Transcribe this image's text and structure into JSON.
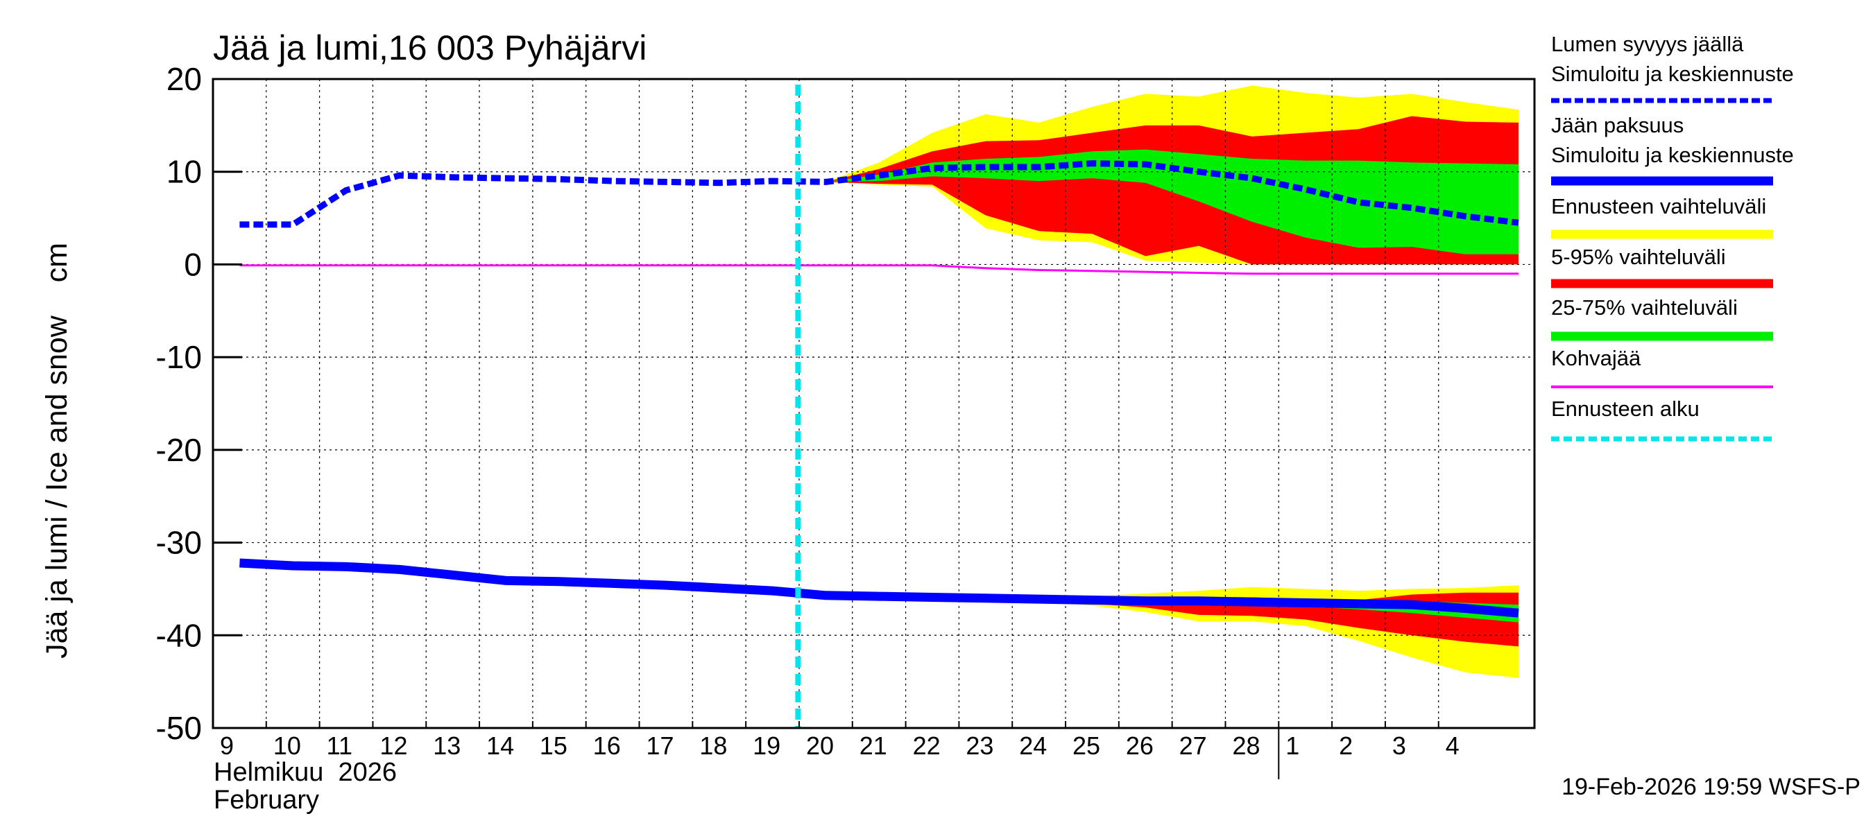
{
  "chart_data": {
    "type": "area",
    "title": "Jää ja lumi,16 003 Pyhäjärvi",
    "ylabel": "Jää ja lumi / Ice and snow    cm",
    "ylim": [
      -50,
      20
    ],
    "yticks": [
      20,
      10,
      0,
      -10,
      -20,
      -30,
      -40,
      -50
    ],
    "grid": true,
    "legend_position": "right",
    "x_axis": {
      "month_label_fi": "Helmikuu  2026",
      "month_label_en": "February",
      "day_labels": [
        "9",
        "10",
        "11",
        "12",
        "13",
        "14",
        "15",
        "16",
        "17",
        "18",
        "19",
        "20",
        "21",
        "22",
        "23",
        "24",
        "25",
        "26",
        "27",
        "28",
        "1",
        "2",
        "3",
        "4"
      ]
    },
    "x": [
      9,
      10,
      11,
      12,
      13,
      14,
      15,
      16,
      17,
      18,
      19,
      20,
      21,
      22,
      23,
      24,
      25,
      26,
      27,
      28,
      29,
      30,
      31,
      32,
      33
    ],
    "forecast_start": 19.5,
    "footer": "19-Feb-2026 19:59 WSFS-P",
    "legend": [
      {
        "label": "Lumen syvyys jäällä",
        "key": "snow_header"
      },
      {
        "label": "Simuloitu ja keskiennuste",
        "key": "snow_mean",
        "color": "#0000ff",
        "style": "dashed"
      },
      {
        "label": "Jään paksuus",
        "key": "ice_header"
      },
      {
        "label": "Simuloitu ja keskiennuste",
        "key": "ice_mean",
        "color": "#0000ff",
        "style": "solid"
      },
      {
        "label": "Ennusteen vaihteluväli",
        "key": "range_full",
        "color": "#ffff00",
        "style": "solid"
      },
      {
        "label": "5-95% vaihteluväli",
        "key": "range_5_95",
        "color": "#ff0000",
        "style": "solid"
      },
      {
        "label": "25-75% vaihteluväli",
        "key": "range_25_75",
        "color": "#00ee00",
        "style": "solid"
      },
      {
        "label": "Kohvajää",
        "key": "slush",
        "color": "#ff00ff",
        "style": "thin"
      },
      {
        "label": "Ennusteen alku",
        "key": "forecast_start",
        "color": "#00e5ee",
        "style": "dashed"
      }
    ],
    "series": [
      {
        "name": "Lumen syvyys jäällä: Simuloitu ja keskiennuste",
        "x": [
          9,
          10,
          11,
          12,
          13,
          14,
          15,
          16,
          17,
          18,
          19,
          20,
          21,
          22,
          23,
          24,
          25,
          26,
          27,
          28,
          29,
          30,
          31,
          32,
          33
        ],
        "values": [
          4.3,
          4.3,
          8.0,
          9.6,
          9.4,
          9.3,
          9.2,
          9.0,
          8.9,
          8.8,
          9.0,
          8.9,
          9.6,
          10.4,
          10.5,
          10.5,
          10.9,
          10.8,
          10.0,
          9.3,
          8.1,
          6.7,
          6.1,
          5.2,
          4.5
        ]
      },
      {
        "name": "Jään paksuus: Simuloitu ja keskiennuste",
        "x": [
          9,
          10,
          11,
          12,
          13,
          14,
          15,
          16,
          17,
          18,
          19,
          20,
          21,
          22,
          23,
          24,
          25,
          26,
          27,
          28,
          29,
          30,
          31,
          32,
          33
        ],
        "values": [
          -32.2,
          -32.5,
          -32.6,
          -32.9,
          -33.5,
          -34.1,
          -34.2,
          -34.4,
          -34.6,
          -34.9,
          -35.2,
          -35.7,
          -35.8,
          -35.9,
          -36.0,
          -36.1,
          -36.2,
          -36.3,
          -36.3,
          -36.4,
          -36.5,
          -36.6,
          -36.7,
          -37.1,
          -37.6
        ]
      },
      {
        "name": "Kohvajää",
        "x": [
          9,
          20,
          21,
          22,
          23,
          24,
          25,
          26,
          27,
          28,
          29,
          30,
          31,
          32,
          33
        ],
        "values": [
          -0.1,
          -0.1,
          -0.1,
          -0.1,
          -0.4,
          -0.6,
          -0.7,
          -0.8,
          -0.9,
          -1.0,
          -1.0,
          -1.0,
          -1.0,
          -1.0,
          -1.0
        ]
      }
    ],
    "bands": {
      "x": [
        20,
        21,
        22,
        23,
        24,
        25,
        26,
        27,
        28,
        29,
        30,
        31,
        32,
        33
      ],
      "snow": {
        "range_full": {
          "upper": [
            8.9,
            11.0,
            14.2,
            16.2,
            15.3,
            17.0,
            18.4,
            18.1,
            19.3,
            18.5,
            18.0,
            18.4,
            17.5,
            16.7
          ],
          "lower": [
            8.9,
            8.6,
            8.4,
            3.9,
            2.6,
            2.4,
            0.4,
            0.2,
            0.0,
            0.0,
            0.0,
            0.0,
            0.0,
            0.0
          ]
        },
        "range_5_95": {
          "upper": [
            8.9,
            10.3,
            12.2,
            13.3,
            13.4,
            14.2,
            15.0,
            15.0,
            13.8,
            14.2,
            14.6,
            16.0,
            15.4,
            15.3
          ],
          "lower": [
            8.9,
            8.7,
            8.6,
            5.3,
            3.6,
            3.3,
            0.9,
            2.0,
            0.0,
            0.0,
            0.0,
            0.0,
            0.0,
            0.0
          ]
        },
        "range_25_75": {
          "upper": [
            8.9,
            9.7,
            11.0,
            11.4,
            11.6,
            12.2,
            12.4,
            11.9,
            11.4,
            11.2,
            11.2,
            11.0,
            10.9,
            10.8
          ],
          "lower": [
            8.9,
            9.0,
            9.5,
            9.3,
            9.0,
            9.3,
            8.8,
            6.8,
            4.6,
            2.9,
            1.8,
            1.9,
            1.1,
            1.1
          ]
        }
      },
      "ice": {
        "range_full": {
          "upper": [
            -35.7,
            -35.8,
            -35.9,
            -36.0,
            -36.0,
            -35.8,
            -35.5,
            -35.2,
            -34.8,
            -35.0,
            -35.2,
            -35.0,
            -34.9,
            -34.6
          ],
          "lower": [
            -35.7,
            -35.8,
            -35.9,
            -36.0,
            -36.3,
            -36.8,
            -37.5,
            -38.5,
            -38.5,
            -39.0,
            -40.6,
            -42.4,
            -44.0,
            -44.6
          ]
        },
        "range_5_95": {
          "upper": [
            -35.7,
            -35.8,
            -35.9,
            -36.0,
            -36.0,
            -36.0,
            -36.1,
            -36.0,
            -35.9,
            -36.1,
            -36.2,
            -35.6,
            -35.4,
            -35.4
          ],
          "lower": [
            -35.7,
            -35.8,
            -35.9,
            -36.0,
            -36.2,
            -36.6,
            -37.0,
            -37.8,
            -37.9,
            -38.3,
            -39.2,
            -40.0,
            -40.7,
            -41.2
          ]
        },
        "range_25_75": {
          "upper": [
            -35.7,
            -35.8,
            -35.9,
            -36.0,
            -36.1,
            -36.2,
            -36.3,
            -36.3,
            -36.3,
            -36.4,
            -36.4,
            -36.3,
            -36.5,
            -36.7
          ],
          "lower": [
            -35.7,
            -35.8,
            -35.9,
            -36.0,
            -36.1,
            -36.3,
            -36.5,
            -36.7,
            -36.8,
            -36.9,
            -37.2,
            -37.6,
            -38.1,
            -38.6
          ]
        }
      }
    }
  }
}
